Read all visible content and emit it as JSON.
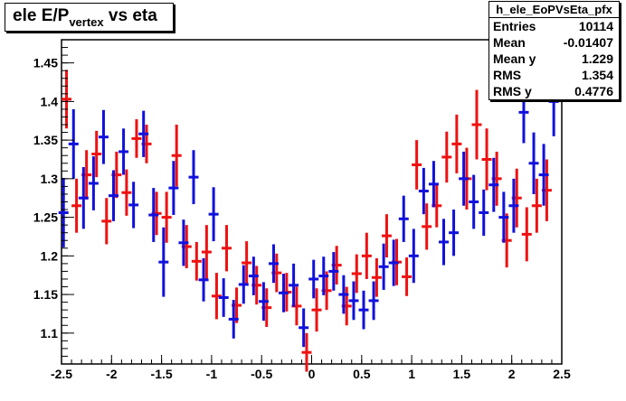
{
  "title": {
    "main": "ele E/P",
    "sub": "vertex",
    "rest": " vs eta"
  },
  "stats": {
    "name": "h_ele_EoPVsEta_pfx",
    "rows": [
      {
        "label": "Entries",
        "value": "10114"
      },
      {
        "label": "Mean",
        "value": "-0.01407"
      },
      {
        "label": "Mean y",
        "value": "1.229"
      },
      {
        "label": "RMS",
        "value": "1.354"
      },
      {
        "label": "RMS y",
        "value": "0.4776"
      }
    ]
  },
  "colors": {
    "red": "#ee1111",
    "blue": "#1111dd",
    "axis": "#000000"
  },
  "chart_data": {
    "type": "scatter",
    "title": "ele E/P vertex vs eta",
    "xlim": [
      -2.5,
      2.5
    ],
    "ylim": [
      1.06,
      1.48
    ],
    "x_ticks": [
      "-2.5",
      "-2",
      "-1.5",
      "-1",
      "-0.5",
      "0",
      "0.5",
      "1",
      "1.5",
      "2",
      "2.5"
    ],
    "y_ticks": [
      "1.1",
      "1.15",
      "1.2",
      "1.25",
      "1.3",
      "1.35",
      "1.4",
      "1.45"
    ],
    "grid": false,
    "series": [
      {
        "color": "red",
        "points": [
          {
            "x": -2.45,
            "y": 1.403,
            "err": 0.038
          },
          {
            "x": -2.35,
            "y": 1.265,
            "err": 0.035
          },
          {
            "x": -2.25,
            "y": 1.305,
            "err": 0.032
          },
          {
            "x": -2.15,
            "y": 1.332,
            "err": 0.03
          },
          {
            "x": -2.05,
            "y": 1.245,
            "err": 0.03
          },
          {
            "x": -1.95,
            "y": 1.305,
            "err": 0.03
          },
          {
            "x": -1.85,
            "y": 1.282,
            "err": 0.03
          },
          {
            "x": -1.75,
            "y": 1.352,
            "err": 0.025
          },
          {
            "x": -1.65,
            "y": 1.345,
            "err": 0.025
          },
          {
            "x": -1.55,
            "y": 1.255,
            "err": 0.028
          },
          {
            "x": -1.45,
            "y": 1.25,
            "err": 0.033
          },
          {
            "x": -1.35,
            "y": 1.33,
            "err": 0.04
          },
          {
            "x": -1.25,
            "y": 1.212,
            "err": 0.028
          },
          {
            "x": -1.15,
            "y": 1.193,
            "err": 0.025
          },
          {
            "x": -1.05,
            "y": 1.205,
            "err": 0.035
          },
          {
            "x": -0.95,
            "y": 1.148,
            "err": 0.03
          },
          {
            "x": -0.85,
            "y": 1.21,
            "err": 0.03
          },
          {
            "x": -0.75,
            "y": 1.136,
            "err": 0.023
          },
          {
            "x": -0.65,
            "y": 1.191,
            "err": 0.028
          },
          {
            "x": -0.55,
            "y": 1.162,
            "err": 0.025
          },
          {
            "x": -0.45,
            "y": 1.133,
            "err": 0.025
          },
          {
            "x": -0.35,
            "y": 1.178,
            "err": 0.025
          },
          {
            "x": -0.25,
            "y": 1.153,
            "err": 0.025
          },
          {
            "x": -0.15,
            "y": 1.135,
            "err": 0.025
          },
          {
            "x": -0.05,
            "y": 1.075,
            "err": 0.025
          },
          {
            "x": 0.05,
            "y": 1.13,
            "err": 0.028
          },
          {
            "x": 0.15,
            "y": 1.155,
            "err": 0.025
          },
          {
            "x": 0.25,
            "y": 1.188,
            "err": 0.025
          },
          {
            "x": 0.35,
            "y": 1.135,
            "err": 0.025
          },
          {
            "x": 0.45,
            "y": 1.177,
            "err": 0.025
          },
          {
            "x": 0.55,
            "y": 1.2,
            "err": 0.03
          },
          {
            "x": 0.65,
            "y": 1.172,
            "err": 0.025
          },
          {
            "x": 0.75,
            "y": 1.226,
            "err": 0.028
          },
          {
            "x": 0.85,
            "y": 1.192,
            "err": 0.03
          },
          {
            "x": 0.95,
            "y": 1.173,
            "err": 0.025
          },
          {
            "x": 1.05,
            "y": 1.318,
            "err": 0.032
          },
          {
            "x": 1.15,
            "y": 1.238,
            "err": 0.03
          },
          {
            "x": 1.25,
            "y": 1.265,
            "err": 0.028
          },
          {
            "x": 1.35,
            "y": 1.328,
            "err": 0.033
          },
          {
            "x": 1.45,
            "y": 1.345,
            "err": 0.038
          },
          {
            "x": 1.55,
            "y": 1.3,
            "err": 0.04
          },
          {
            "x": 1.65,
            "y": 1.37,
            "err": 0.045
          },
          {
            "x": 1.75,
            "y": 1.325,
            "err": 0.04
          },
          {
            "x": 1.85,
            "y": 1.3,
            "err": 0.035
          },
          {
            "x": 1.95,
            "y": 1.22,
            "err": 0.035
          },
          {
            "x": 2.05,
            "y": 1.275,
            "err": 0.038
          },
          {
            "x": 2.15,
            "y": 1.228,
            "err": 0.035
          },
          {
            "x": 2.25,
            "y": 1.265,
            "err": 0.035
          },
          {
            "x": 2.35,
            "y": 1.285,
            "err": 0.04
          }
        ]
      },
      {
        "color": "blue",
        "points": [
          {
            "x": -2.48,
            "y": 1.256,
            "err": 0.045
          },
          {
            "x": -2.38,
            "y": 1.345,
            "err": 0.045
          },
          {
            "x": -2.28,
            "y": 1.275,
            "err": 0.04
          },
          {
            "x": -2.18,
            "y": 1.294,
            "err": 0.035
          },
          {
            "x": -2.08,
            "y": 1.354,
            "err": 0.035
          },
          {
            "x": -1.98,
            "y": 1.278,
            "err": 0.033
          },
          {
            "x": -1.88,
            "y": 1.335,
            "err": 0.03
          },
          {
            "x": -1.78,
            "y": 1.266,
            "err": 0.03
          },
          {
            "x": -1.68,
            "y": 1.358,
            "err": 0.03
          },
          {
            "x": -1.58,
            "y": 1.253,
            "err": 0.035
          },
          {
            "x": -1.48,
            "y": 1.192,
            "err": 0.045
          },
          {
            "x": -1.38,
            "y": 1.288,
            "err": 0.035
          },
          {
            "x": -1.28,
            "y": 1.217,
            "err": 0.03
          },
          {
            "x": -1.18,
            "y": 1.302,
            "err": 0.035
          },
          {
            "x": -1.08,
            "y": 1.169,
            "err": 0.028
          },
          {
            "x": -0.98,
            "y": 1.254,
            "err": 0.035
          },
          {
            "x": -0.88,
            "y": 1.146,
            "err": 0.025
          },
          {
            "x": -0.78,
            "y": 1.118,
            "err": 0.025
          },
          {
            "x": -0.68,
            "y": 1.163,
            "err": 0.025
          },
          {
            "x": -0.58,
            "y": 1.174,
            "err": 0.025
          },
          {
            "x": -0.48,
            "y": 1.141,
            "err": 0.025
          },
          {
            "x": -0.38,
            "y": 1.19,
            "err": 0.025
          },
          {
            "x": -0.28,
            "y": 1.152,
            "err": 0.025
          },
          {
            "x": -0.18,
            "y": 1.162,
            "err": 0.028
          },
          {
            "x": -0.08,
            "y": 1.107,
            "err": 0.025
          },
          {
            "x": 0.02,
            "y": 1.17,
            "err": 0.025
          },
          {
            "x": 0.12,
            "y": 1.174,
            "err": 0.025
          },
          {
            "x": 0.22,
            "y": 1.18,
            "err": 0.025
          },
          {
            "x": 0.32,
            "y": 1.15,
            "err": 0.025
          },
          {
            "x": 0.42,
            "y": 1.142,
            "err": 0.025
          },
          {
            "x": 0.52,
            "y": 1.13,
            "err": 0.025
          },
          {
            "x": 0.62,
            "y": 1.142,
            "err": 0.025
          },
          {
            "x": 0.72,
            "y": 1.186,
            "err": 0.03
          },
          {
            "x": 0.82,
            "y": 1.191,
            "err": 0.03
          },
          {
            "x": 0.92,
            "y": 1.248,
            "err": 0.03
          },
          {
            "x": 1.02,
            "y": 1.2,
            "err": 0.035
          },
          {
            "x": 1.12,
            "y": 1.284,
            "err": 0.03
          },
          {
            "x": 1.22,
            "y": 1.293,
            "err": 0.03
          },
          {
            "x": 1.32,
            "y": 1.218,
            "err": 0.03
          },
          {
            "x": 1.42,
            "y": 1.23,
            "err": 0.03
          },
          {
            "x": 1.52,
            "y": 1.3,
            "err": 0.035
          },
          {
            "x": 1.62,
            "y": 1.27,
            "err": 0.035
          },
          {
            "x": 1.72,
            "y": 1.256,
            "err": 0.03
          },
          {
            "x": 1.82,
            "y": 1.292,
            "err": 0.035
          },
          {
            "x": 1.92,
            "y": 1.25,
            "err": 0.033
          },
          {
            "x": 2.02,
            "y": 1.265,
            "err": 0.035
          },
          {
            "x": 2.12,
            "y": 1.386,
            "err": 0.04
          },
          {
            "x": 2.22,
            "y": 1.32,
            "err": 0.04
          },
          {
            "x": 2.32,
            "y": 1.305,
            "err": 0.04
          },
          {
            "x": 2.42,
            "y": 1.4,
            "err": 0.045
          }
        ]
      }
    ]
  }
}
